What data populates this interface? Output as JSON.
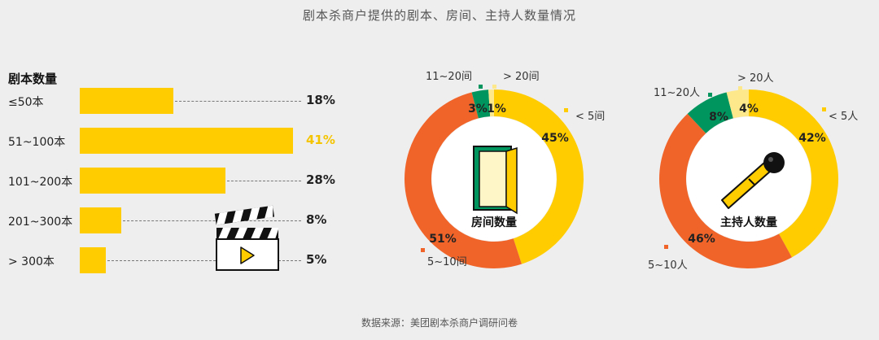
{
  "header": {
    "title": "剧本杀商户提供的剧本、房间、主持人数量情况"
  },
  "footer": {
    "source": "数据来源：美团剧本杀商户调研问卷"
  },
  "chart_data": [
    {
      "type": "bar",
      "orientation": "horizontal",
      "title": "剧本数量",
      "categories": [
        "≤50本",
        "51~100本",
        "101~200本",
        "201~300本",
        "> 300本"
      ],
      "values": [
        18,
        41,
        28,
        8,
        5
      ],
      "value_labels": [
        "18%",
        "41%",
        "28%",
        "8%",
        "5%"
      ],
      "highlight_index": 1,
      "colors": {
        "bar": "#ffcc00",
        "highlight_label": "#f5c400"
      },
      "icon": "clapperboard-icon"
    },
    {
      "type": "pie",
      "donut": true,
      "title": "房间数量",
      "categories": [
        "< 5间",
        "5~10间",
        "11~20间",
        "> 20间"
      ],
      "values": [
        45,
        51,
        3,
        1
      ],
      "value_labels": [
        "45%",
        "51%",
        "3%",
        "1%"
      ],
      "colors": [
        "#ffcc00",
        "#f0642a",
        "#00955f",
        "#fde98c"
      ],
      "icon": "door-icon"
    },
    {
      "type": "pie",
      "donut": true,
      "title": "主持人数量",
      "categories": [
        "< 5人",
        "5~10人",
        "11~20人",
        "> 20人"
      ],
      "values": [
        42,
        46,
        8,
        4
      ],
      "value_labels": [
        "42%",
        "46%",
        "8%",
        "4%"
      ],
      "colors": [
        "#ffcc00",
        "#f0642a",
        "#00955f",
        "#fde98c"
      ],
      "icon": "microphone-icon"
    }
  ]
}
